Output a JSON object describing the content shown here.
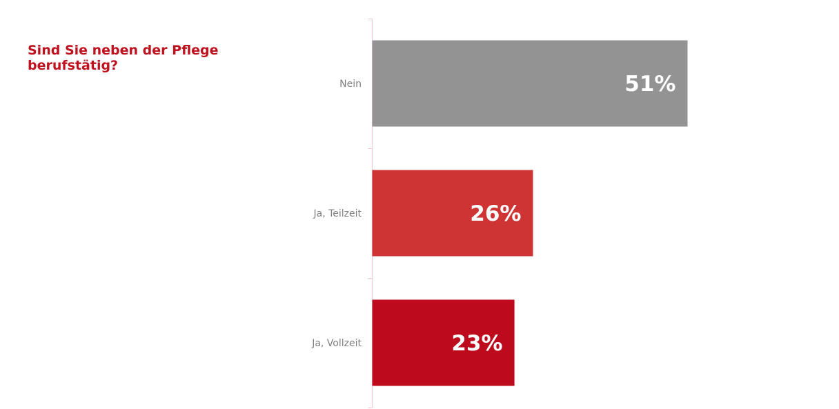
{
  "question": "Sind Sie neben der Pflege berufstätig?",
  "chart_data": {
    "type": "bar",
    "orientation": "horizontal",
    "categories": [
      "Nein",
      "Ja, Teilzeit",
      "Ja, Vollzeit"
    ],
    "values": [
      51,
      26,
      23
    ],
    "value_labels": [
      "51%",
      "26%",
      "23%"
    ],
    "unit": "%",
    "colors": [
      "#939394",
      "#cf3434",
      "#bd0a1d"
    ],
    "axis_color": "#f2c9cf",
    "xlim": [
      0,
      100
    ],
    "grid": false,
    "legend": "none"
  }
}
